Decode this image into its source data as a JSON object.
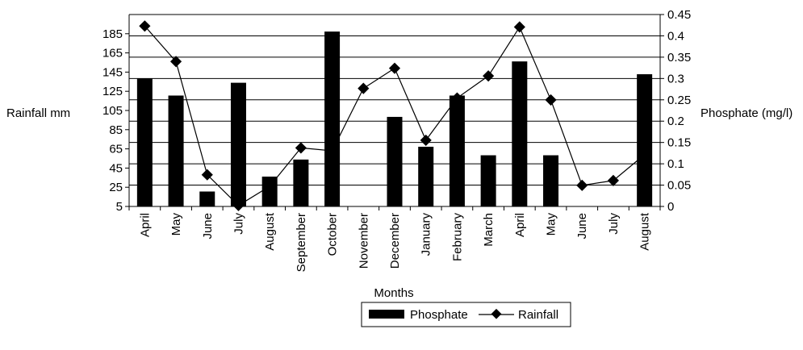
{
  "chart_data": {
    "type": "bar",
    "categories": [
      "April",
      "May",
      "June",
      "July",
      "August",
      "September",
      "October",
      "November",
      "December",
      "January",
      "February",
      "March",
      "April",
      "May",
      "June",
      "July",
      "August"
    ],
    "xlabel": "Months",
    "ylabel_left": "Rainfall mm",
    "ylabel_right": "Phosphate (mg/l)",
    "left_axis": {
      "min": 5,
      "max": 205,
      "ticks": [
        5,
        25,
        45,
        65,
        85,
        105,
        125,
        145,
        165,
        185
      ]
    },
    "right_axis": {
      "min": 0,
      "max": 0.45,
      "ticks": [
        "0",
        "0.05",
        "0.1",
        "0.15",
        "0.2",
        "0.25",
        "0.3",
        "0.35",
        "0.4",
        "0.45"
      ]
    },
    "grid": true,
    "legend_position": "bottom",
    "series": [
      {
        "name": "Phosphate",
        "kind": "bar",
        "axis": "right",
        "color": "#000000",
        "values": [
          0.3,
          0.26,
          0.035,
          0.29,
          0.07,
          0.11,
          0.41,
          0,
          0.21,
          0.14,
          0.26,
          0.12,
          0.34,
          0.12,
          0,
          0,
          0.31
        ]
      },
      {
        "name": "Rainfall",
        "kind": "line",
        "axis": "left",
        "color": "#000000",
        "values": [
          193,
          156,
          38,
          6,
          26,
          66,
          63,
          128,
          149,
          74,
          118,
          141,
          192,
          116,
          27,
          32,
          59
        ]
      }
    ]
  }
}
